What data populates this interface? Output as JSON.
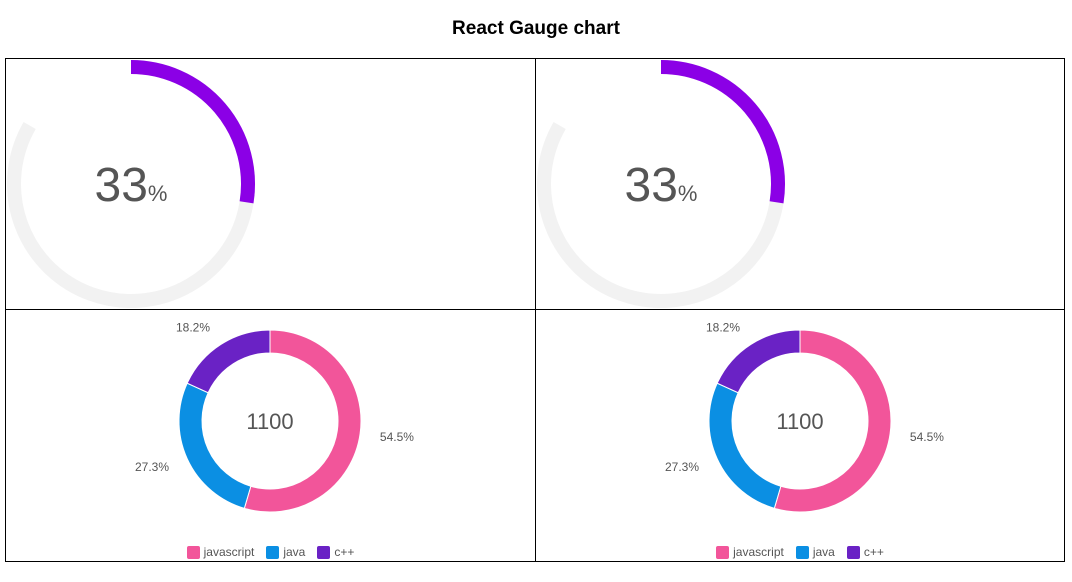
{
  "page": {
    "title": "React Gauge chart"
  },
  "chart_data": [
    {
      "type": "gauge",
      "value": 33,
      "max": 100,
      "value_text": "33",
      "unit": "%",
      "colors": {
        "fill": "#8b00e6",
        "track": "#f2f2f2",
        "text": "#555555"
      }
    },
    {
      "type": "gauge",
      "value": 33,
      "max": 100,
      "value_text": "33",
      "unit": "%",
      "colors": {
        "fill": "#8b00e6",
        "track": "#f2f2f2",
        "text": "#555555"
      }
    },
    {
      "type": "pie",
      "donut": true,
      "center_label": "1100",
      "categories": [
        "javascript",
        "java",
        "c++"
      ],
      "values": [
        600,
        300,
        200
      ],
      "percent_labels": [
        "54.5%",
        "27.3%",
        "18.2%"
      ],
      "colors": [
        "#f2559a",
        "#0b8fe3",
        "#6a22c5"
      ],
      "legend": "bottom"
    },
    {
      "type": "pie",
      "donut": true,
      "center_label": "1100",
      "categories": [
        "javascript",
        "java",
        "c++"
      ],
      "values": [
        600,
        300,
        200
      ],
      "percent_labels": [
        "54.5%",
        "27.3%",
        "18.2%"
      ],
      "colors": [
        "#f2559a",
        "#0b8fe3",
        "#6a22c5"
      ],
      "legend": "bottom"
    }
  ]
}
